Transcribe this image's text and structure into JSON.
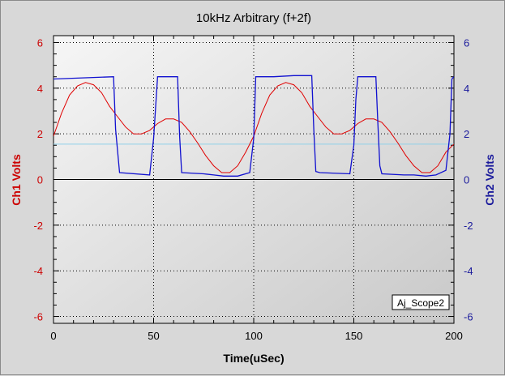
{
  "chart_data": {
    "type": "line",
    "title": "10kHz Arbitrary (f+2f)",
    "xlabel": "Time(uSec)",
    "ylabel_left": "Ch1 Volts",
    "ylabel_right": "Ch2 Volts",
    "xlim": [
      0,
      200
    ],
    "ylim_left": [
      -6.3,
      6.3
    ],
    "ylim_right": [
      -6.3,
      6.3
    ],
    "x_ticks": [
      "0",
      "50",
      "100",
      "150",
      "200"
    ],
    "y_ticks_left": [
      "6",
      "4",
      "2",
      "0",
      "-2",
      "-4",
      "-6"
    ],
    "y_ticks_right": [
      "6",
      "4",
      "2",
      "0",
      "-2",
      "-4",
      "-6"
    ],
    "grid": true,
    "zero_line_left": 0,
    "reference_line_right": 1.55,
    "legend": "Aj_Scope2",
    "legend_position": "bottom-right",
    "series": [
      {
        "axis": "left",
        "color": "#e00000",
        "x": [
          0,
          4,
          8,
          12,
          16,
          20,
          24,
          28,
          32,
          36,
          40,
          44,
          48,
          52,
          56,
          60,
          64,
          68,
          72,
          76,
          80,
          84,
          88,
          92,
          96,
          100,
          104,
          108,
          112,
          116,
          120,
          124,
          128,
          132,
          136,
          140,
          144,
          148,
          152,
          156,
          160,
          164,
          168,
          172,
          176,
          180,
          184,
          188,
          192,
          196,
          200
        ],
        "y": [
          1.9,
          2.9,
          3.7,
          4.1,
          4.25,
          4.15,
          3.8,
          3.2,
          2.75,
          2.3,
          2.0,
          2.0,
          2.15,
          2.45,
          2.65,
          2.65,
          2.5,
          2.1,
          1.6,
          1.05,
          0.6,
          0.3,
          0.3,
          0.6,
          1.2,
          1.9,
          2.9,
          3.7,
          4.1,
          4.25,
          4.15,
          3.8,
          3.2,
          2.75,
          2.3,
          2.0,
          2.0,
          2.15,
          2.45,
          2.65,
          2.65,
          2.5,
          2.1,
          1.6,
          1.05,
          0.6,
          0.3,
          0.3,
          0.6,
          1.2,
          1.55
        ]
      },
      {
        "axis": "right",
        "color": "#1010d0",
        "x": [
          0,
          30,
          31,
          33,
          48,
          50,
          52,
          62,
          63,
          64,
          75,
          80,
          85,
          92,
          98,
          100,
          101,
          110,
          120,
          129,
          130,
          131,
          133,
          148,
          150,
          151,
          152,
          161,
          162,
          163,
          164,
          175,
          180,
          186,
          191,
          196,
          198,
          199,
          200
        ],
        "y": [
          4.4,
          4.5,
          2.2,
          0.3,
          0.2,
          1.8,
          4.5,
          4.5,
          1.9,
          0.3,
          0.25,
          0.2,
          0.15,
          0.15,
          0.3,
          1.8,
          4.5,
          4.5,
          4.55,
          4.55,
          2.2,
          0.35,
          0.3,
          0.25,
          1.5,
          3.5,
          4.5,
          4.5,
          2.5,
          0.6,
          0.25,
          0.2,
          0.2,
          0.15,
          0.2,
          0.4,
          2.0,
          4.4,
          4.5
        ]
      }
    ]
  }
}
